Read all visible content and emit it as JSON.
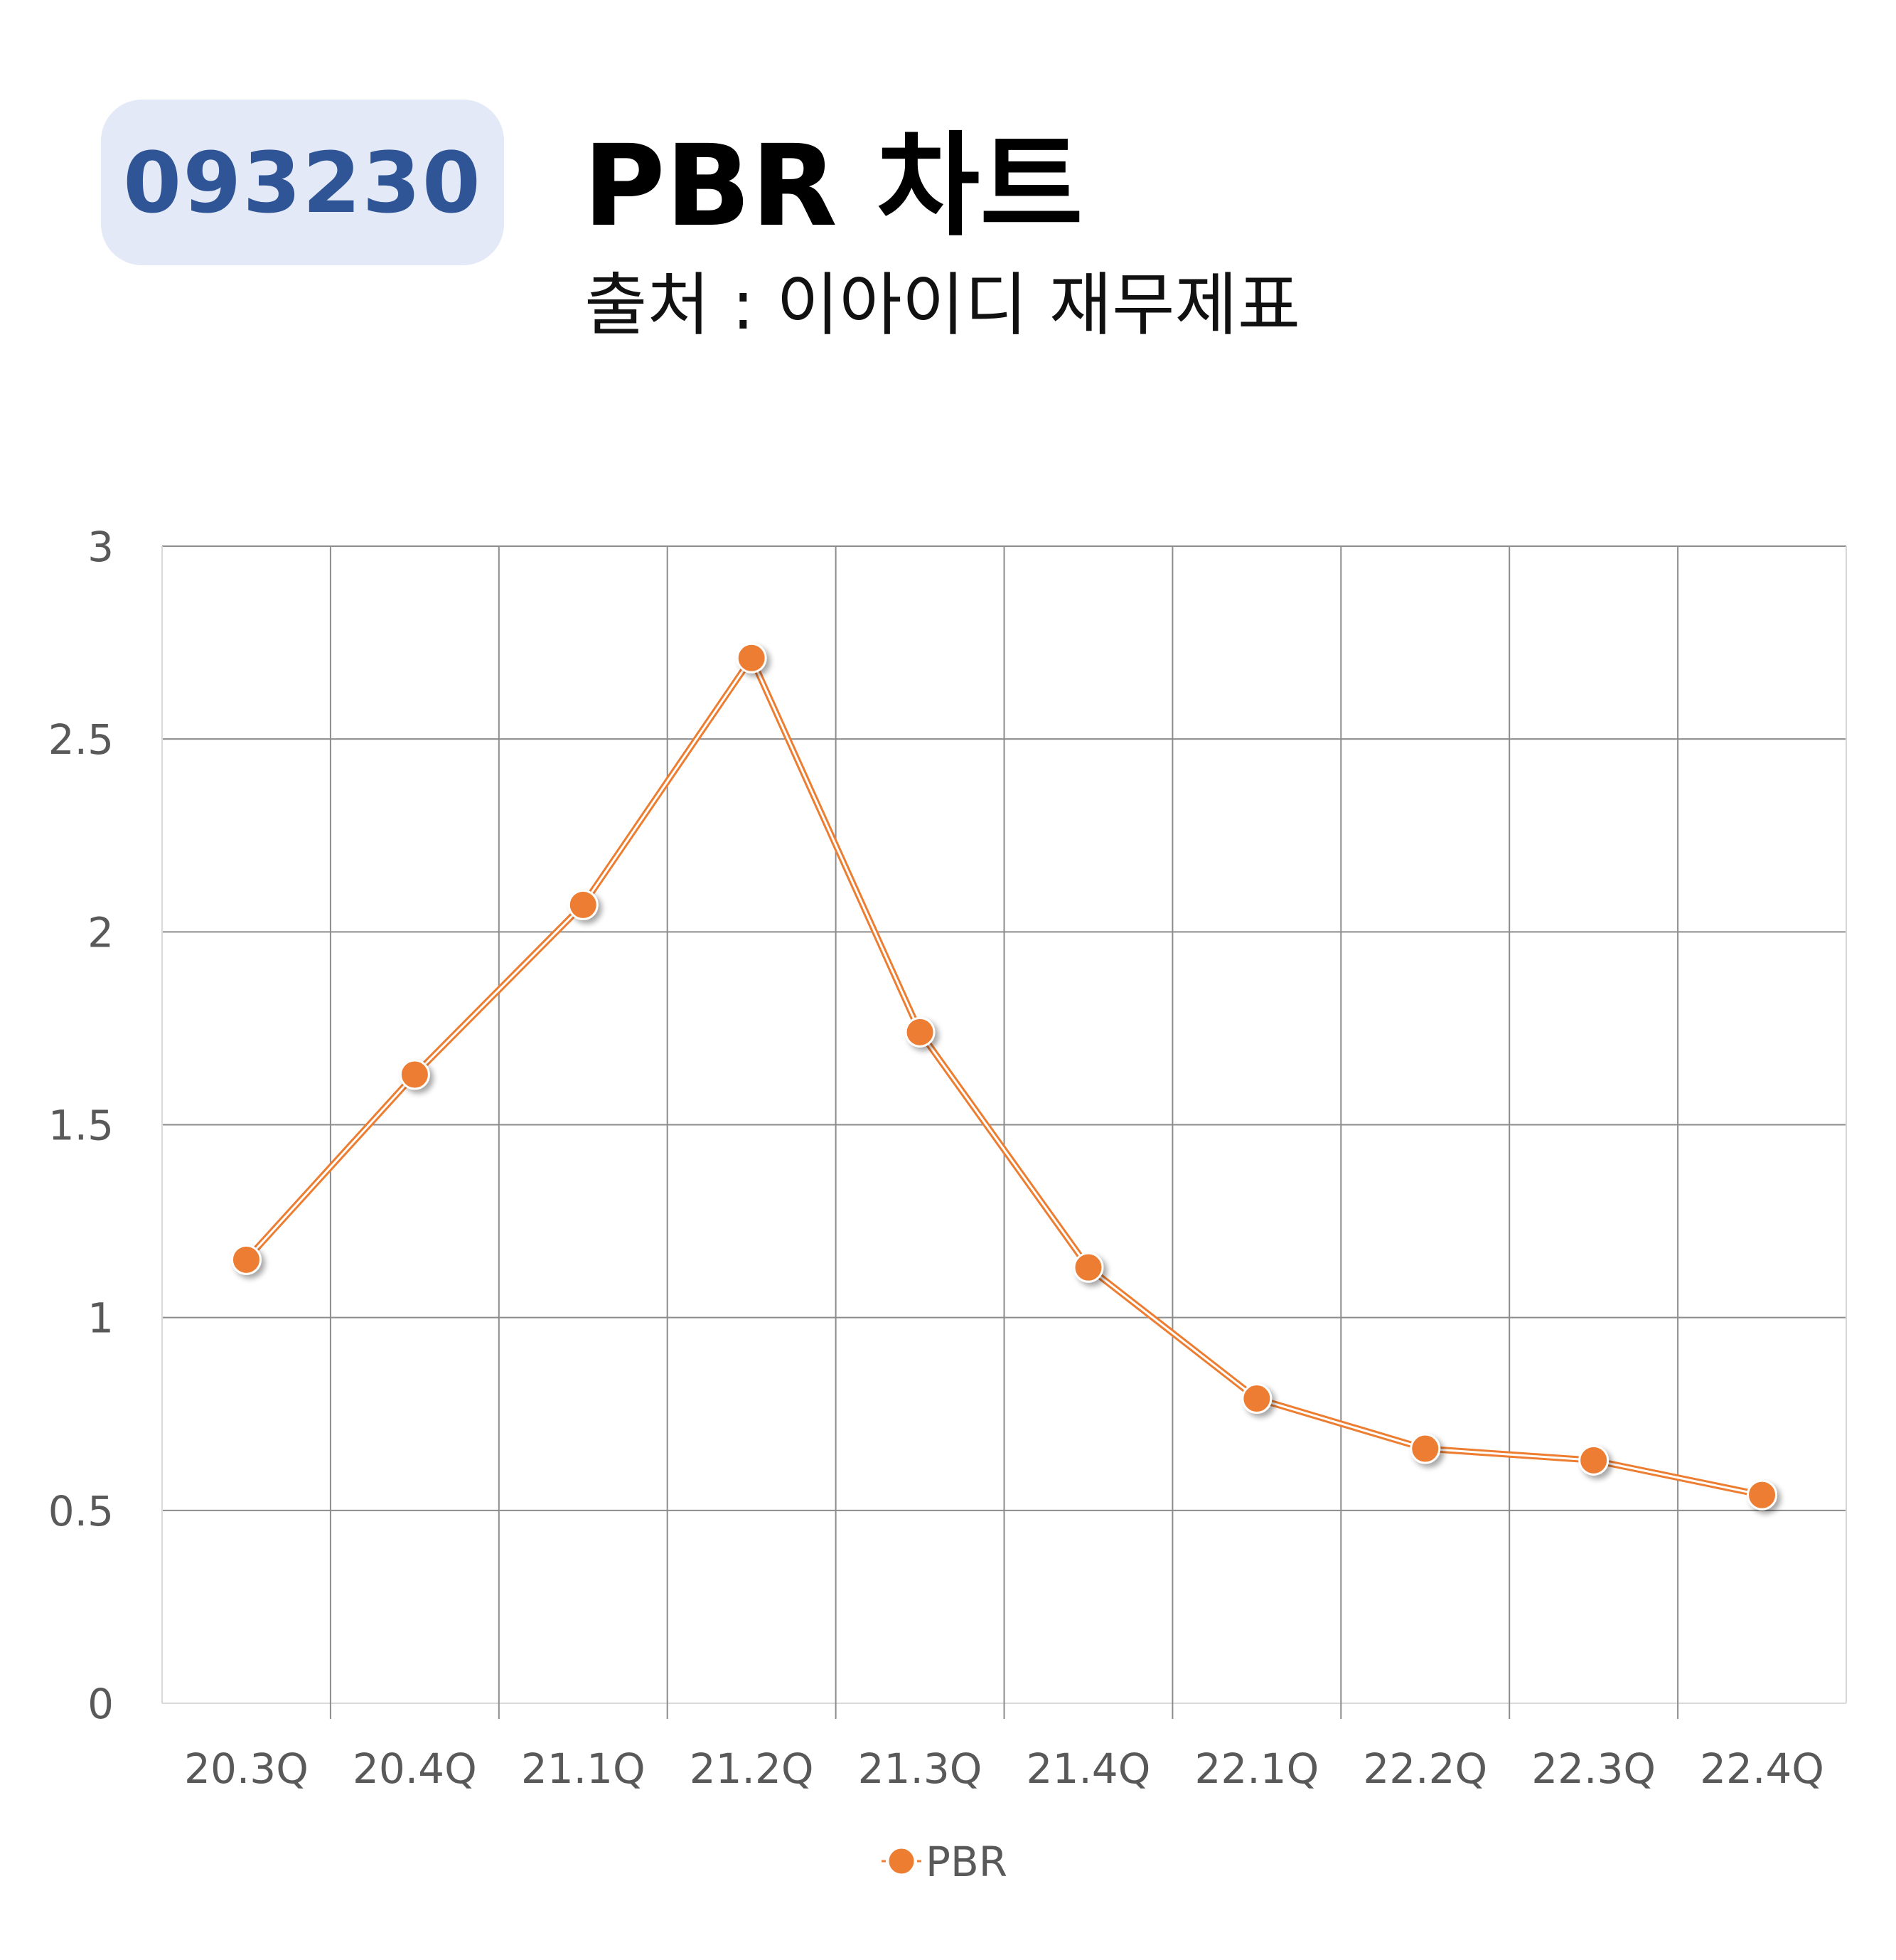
{
  "header": {
    "code": "093230",
    "title": "PBR 차트",
    "subtitle": "출처 : 이아이디 재무제표"
  },
  "colors": {
    "badge_bg": "#e3e9f6",
    "badge_text": "#2f5597",
    "series": "#ed7d31",
    "grid": "#8c8c8c",
    "tick_text": "#595959"
  },
  "chart_data": {
    "type": "line",
    "title": "",
    "xlabel": "",
    "ylabel": "",
    "categories": [
      "20.3Q",
      "20.4Q",
      "21.1Q",
      "21.2Q",
      "21.3Q",
      "21.4Q",
      "22.1Q",
      "22.2Q",
      "22.3Q",
      "22.4Q"
    ],
    "series": [
      {
        "name": "PBR",
        "values": [
          1.15,
          1.63,
          2.07,
          2.71,
          1.74,
          1.13,
          0.79,
          0.66,
          0.63,
          0.54
        ]
      }
    ],
    "ylim": [
      0,
      3
    ],
    "yticks": [
      "0",
      "0.5",
      "1",
      "1.5",
      "2",
      "2.5",
      "3"
    ],
    "grid": true,
    "legend": "bottom"
  }
}
